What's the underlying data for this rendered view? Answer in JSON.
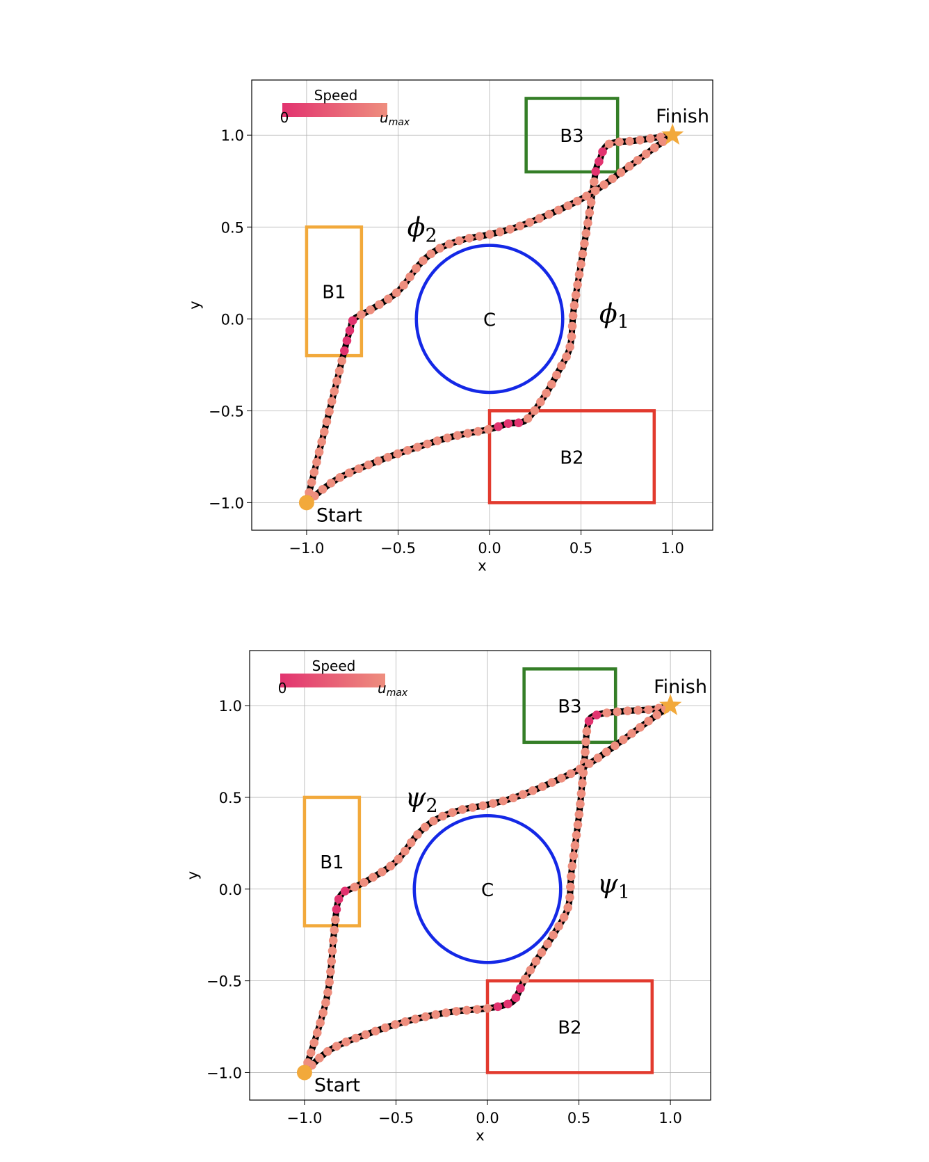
{
  "chart_data": [
    {
      "type": "line",
      "xlabel": "x",
      "ylabel": "y",
      "xlim": [
        -1.3,
        1.22
      ],
      "ylim": [
        -1.15,
        1.3
      ],
      "xticks": [
        -1.0,
        -0.5,
        0.0,
        0.5,
        1.0
      ],
      "yticks": [
        -1.0,
        -0.5,
        0.0,
        0.5,
        1.0
      ],
      "xtick_labels": [
        "−1.0",
        "−0.5",
        "0.0",
        "0.5",
        "1.0"
      ],
      "ytick_labels": [
        "−1.0",
        "−0.5",
        "0.0",
        "0.5",
        "1.0"
      ],
      "grid": true,
      "colorbar": {
        "title": "Speed",
        "min_label": "0",
        "max_label": "u",
        "max_label_sub": "max",
        "colors": [
          "#e2336f",
          "#ee8e7e"
        ],
        "placement": "top-left"
      },
      "regions": [
        {
          "label": "B1",
          "shape": "rect",
          "x": [
            -1.0,
            -0.7
          ],
          "y": [
            -0.2,
            0.5
          ],
          "color": "#f2a93b"
        },
        {
          "label": "B2",
          "shape": "rect",
          "x": [
            0.0,
            0.9
          ],
          "y": [
            -1.0,
            -0.5
          ],
          "color": "#e23a2e"
        },
        {
          "label": "B3",
          "shape": "rect",
          "x": [
            0.2,
            0.7
          ],
          "y": [
            0.8,
            1.2
          ],
          "color": "#347e27"
        },
        {
          "label": "C",
          "shape": "circle",
          "center": [
            0.0,
            0.0
          ],
          "radius": 0.4,
          "color": "#1428e6"
        }
      ],
      "start": {
        "label": "Start",
        "x": -1.0,
        "y": -1.0,
        "color": "#f2a93b"
      },
      "finish": {
        "label": "Finish",
        "x": 1.0,
        "y": 1.0,
        "color": "#f2a93b"
      },
      "series": [
        {
          "symbol": "ϕ",
          "subscript": "1",
          "x": [
            -1.0,
            -0.83,
            -0.6,
            -0.4,
            -0.2,
            0.0,
            0.1,
            0.2,
            0.3,
            0.38,
            0.44,
            0.46,
            0.5,
            0.55,
            0.58,
            0.6,
            0.65,
            0.8,
            1.0
          ],
          "y": [
            -1.0,
            -0.87,
            -0.77,
            -0.7,
            -0.64,
            -0.6,
            -0.57,
            -0.55,
            -0.42,
            -0.28,
            -0.15,
            0.05,
            0.3,
            0.6,
            0.8,
            0.86,
            0.95,
            0.97,
            1.0
          ],
          "slow_x": [
            0.02,
            0.2
          ],
          "slow_y": [
            0.8,
            0.95
          ]
        },
        {
          "symbol": "ϕ",
          "subscript": "2",
          "x": [
            -1.0,
            -0.9,
            -0.8,
            -0.78,
            -0.76,
            -0.74,
            -0.65,
            -0.5,
            -0.38,
            -0.28,
            -0.15,
            0.0,
            0.15,
            0.35,
            0.55,
            0.75,
            0.9,
            1.0
          ],
          "y": [
            -1.0,
            -0.6,
            -0.2,
            -0.12,
            -0.05,
            0.0,
            0.05,
            0.15,
            0.3,
            0.38,
            0.43,
            0.46,
            0.5,
            0.58,
            0.68,
            0.82,
            0.93,
            1.0
          ],
          "slow_y": [
            -0.2,
            0.0
          ]
        }
      ],
      "series_label_positions": "ϕ2 above left, ϕ1 right of circle"
    },
    {
      "type": "line",
      "xlabel": "x",
      "ylabel": "y",
      "xlim": [
        -1.3,
        1.22
      ],
      "ylim": [
        -1.15,
        1.3
      ],
      "xticks": [
        -1.0,
        -0.5,
        0.0,
        0.5,
        1.0
      ],
      "yticks": [
        -1.0,
        -0.5,
        0.0,
        0.5,
        1.0
      ],
      "xtick_labels": [
        "−1.0",
        "−0.5",
        "0.0",
        "0.5",
        "1.0"
      ],
      "ytick_labels": [
        "−1.0",
        "−0.5",
        "0.0",
        "0.5",
        "1.0"
      ],
      "grid": true,
      "colorbar": {
        "title": "Speed",
        "min_label": "0",
        "max_label": "u",
        "max_label_sub": "max",
        "colors": [
          "#e2336f",
          "#ee8e7e"
        ],
        "placement": "top-left"
      },
      "regions": [
        {
          "label": "B1",
          "shape": "rect",
          "x": [
            -1.0,
            -0.7
          ],
          "y": [
            -0.2,
            0.5
          ],
          "color": "#f2a93b"
        },
        {
          "label": "B2",
          "shape": "rect",
          "x": [
            0.0,
            0.9
          ],
          "y": [
            -1.0,
            -0.5
          ],
          "color": "#e23a2e"
        },
        {
          "label": "B3",
          "shape": "rect",
          "x": [
            0.2,
            0.7
          ],
          "y": [
            0.8,
            1.2
          ],
          "color": "#347e27"
        },
        {
          "label": "C",
          "shape": "circle",
          "center": [
            0.0,
            0.0
          ],
          "radius": 0.4,
          "color": "#1428e6"
        }
      ],
      "start": {
        "label": "Start",
        "x": -1.0,
        "y": -1.0,
        "color": "#f2a93b"
      },
      "finish": {
        "label": "Finish",
        "x": 1.0,
        "y": 1.0,
        "color": "#f2a93b"
      },
      "series": [
        {
          "symbol": "ψ",
          "subscript": "1",
          "x": [
            -1.0,
            -0.85,
            -0.6,
            -0.4,
            -0.2,
            0.0,
            0.1,
            0.15,
            0.2,
            0.28,
            0.36,
            0.44,
            0.46,
            0.5,
            0.53,
            0.55,
            0.6,
            0.75,
            0.9,
            1.0
          ],
          "y": [
            -1.0,
            -0.87,
            -0.77,
            -0.71,
            -0.67,
            -0.65,
            -0.63,
            -0.6,
            -0.5,
            -0.37,
            -0.25,
            -0.1,
            0.1,
            0.4,
            0.7,
            0.9,
            0.95,
            0.97,
            0.98,
            1.0
          ],
          "slow_x": [
            0.05,
            0.18
          ],
          "slow_y": [
            0.88,
            0.95
          ]
        },
        {
          "symbol": "ψ",
          "subscript": "2",
          "x": [
            -1.0,
            -0.88,
            -0.84,
            -0.82,
            -0.79,
            -0.75,
            -0.65,
            -0.5,
            -0.38,
            -0.28,
            -0.15,
            0.0,
            0.15,
            0.35,
            0.55,
            0.75,
            0.9,
            1.0
          ],
          "y": [
            -1.0,
            -0.6,
            -0.25,
            -0.08,
            -0.02,
            0.0,
            0.05,
            0.15,
            0.3,
            0.38,
            0.43,
            0.46,
            0.5,
            0.58,
            0.68,
            0.82,
            0.93,
            1.0
          ],
          "slow_y": [
            -0.15,
            0.0
          ]
        }
      ],
      "series_label_positions": "ψ2 above left, ψ1 right of circle"
    }
  ]
}
